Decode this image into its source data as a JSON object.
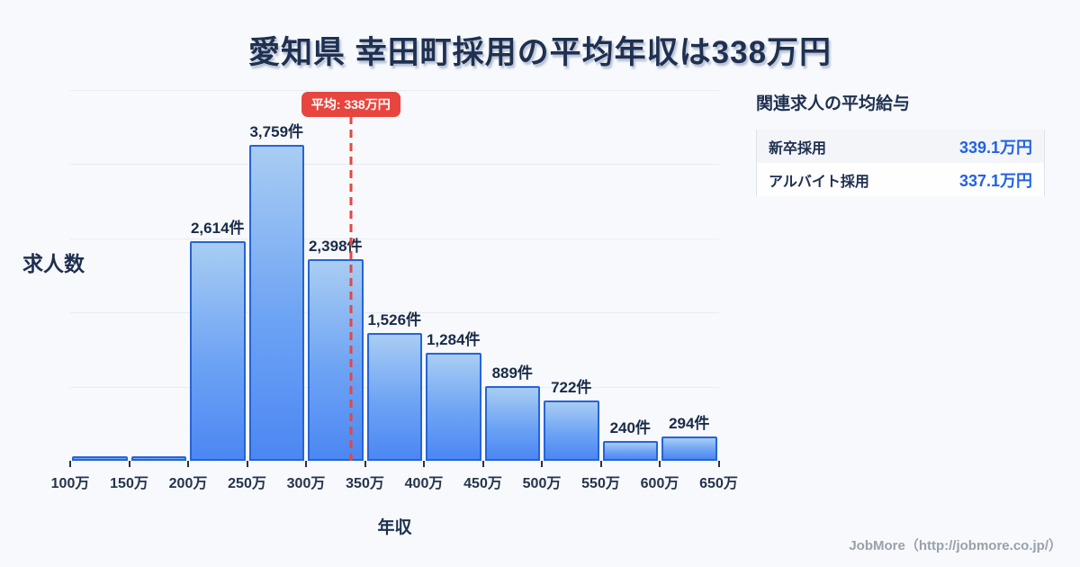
{
  "page": {
    "title": "愛知県 幸田町採用の平均年収は338万円",
    "background_color": "#f7f9fc",
    "accent_red": "#e8453f",
    "accent_blue": "#2262e3"
  },
  "chart_data": {
    "type": "bar",
    "title": "愛知県 幸田町採用の平均年収は338万円",
    "xlabel": "年収",
    "ylabel": "求人数",
    "unit_suffix": "件",
    "x_tick_labels": [
      "100万",
      "150万",
      "200万",
      "250万",
      "300万",
      "350万",
      "400万",
      "450万",
      "500万",
      "550万",
      "600万",
      "650万"
    ],
    "bins": [
      {
        "range": "100万-150万",
        "value": null,
        "display": ""
      },
      {
        "range": "150万-200万",
        "value": null,
        "display": ""
      },
      {
        "range": "200万-250万",
        "value": 2614,
        "display": "2,614件"
      },
      {
        "range": "250万-300万",
        "value": 3759,
        "display": "3,759件"
      },
      {
        "range": "300万-350万",
        "value": 2398,
        "display": "2,398件"
      },
      {
        "range": "350万-400万",
        "value": 1526,
        "display": "1,526件"
      },
      {
        "range": "400万-450万",
        "value": 1284,
        "display": "1,284件"
      },
      {
        "range": "450万-500万",
        "value": 889,
        "display": "889件"
      },
      {
        "range": "500万-550万",
        "value": 722,
        "display": "722件"
      },
      {
        "range": "550万-600万",
        "value": 240,
        "display": "240件"
      },
      {
        "range": "600万-650万",
        "value": 294,
        "display": "294件"
      }
    ],
    "average_line": {
      "label": "平均: 338万円",
      "value": 338,
      "color": "#e8453f"
    },
    "colors": {
      "bar_top": "#a9cdf3",
      "bar_bottom": "#4c87f3",
      "bar_border": "#2564d8",
      "grid": "#e8ecf3",
      "text": "#1f3050"
    },
    "x_axis_range_man_yen": [
      100,
      650
    ],
    "grid": true,
    "legend": false
  },
  "side_panel": {
    "heading": "関連求人の平均給与",
    "rows": [
      {
        "label": "新卒採用",
        "value": "339.1万円"
      },
      {
        "label": "アルバイト採用",
        "value": "337.1万円"
      }
    ]
  },
  "footer": {
    "credit": "JobMore（http://jobmore.co.jp/）"
  }
}
